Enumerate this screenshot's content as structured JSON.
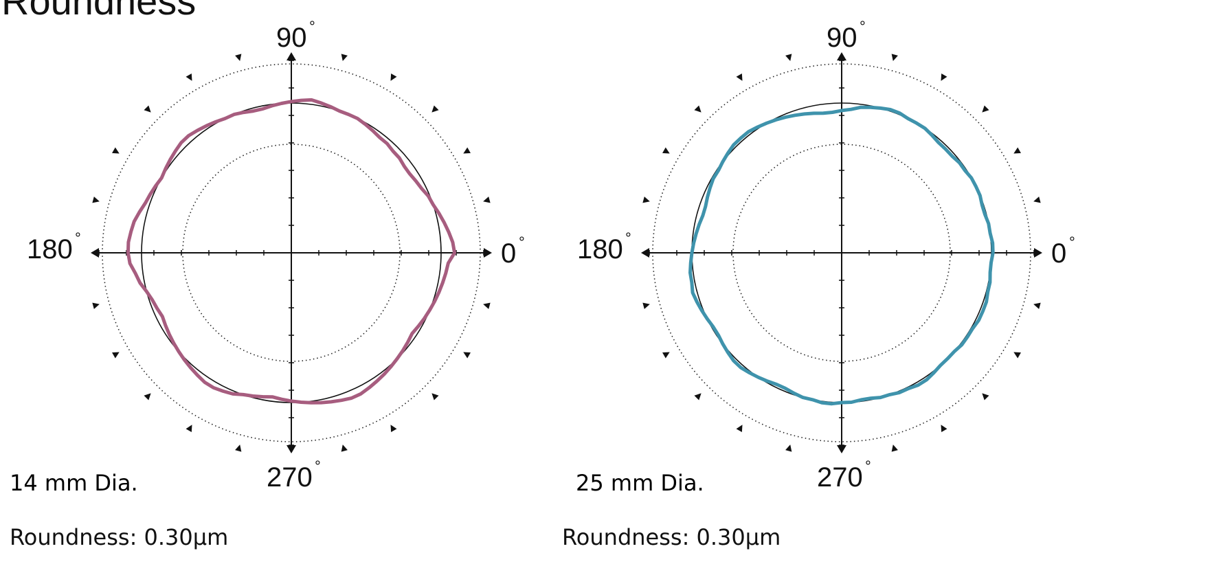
{
  "title": "Roundness",
  "chart_data": [
    {
      "type": "polar-line",
      "angle_labels": [
        "90",
        "180",
        "0",
        "270"
      ],
      "degree_symbol": "°",
      "caption": "14 mm Dia.",
      "roundness_text": "Roundness: 0.30μm",
      "color": "#a75d7f",
      "radial_deviation": [
        1.09,
        1.08,
        1.06,
        1.04,
        1.02,
        1.0,
        0.99,
        0.97,
        0.96,
        0.95,
        0.95,
        0.96,
        0.96,
        0.97,
        0.97,
        0.98,
        0.99,
        1.0,
        1.0,
        1.0,
        1.01,
        1.02,
        1.03,
        1.02,
        1.01,
        1.0,
        0.99,
        0.98,
        0.98,
        0.99,
        1.0,
        1.0,
        1.01,
        1.02,
        1.03,
        1.04,
        1.04,
        1.03,
        1.02,
        1.01,
        1.0,
        1.01,
        1.02,
        1.03,
        1.05,
        1.07,
        1.08,
        1.09,
        1.09,
        1.08,
        1.05,
        1.03,
        1.0,
        0.98,
        0.97,
        0.96,
        0.97,
        0.98,
        0.99,
        1.0,
        1.01,
        1.02,
        1.03,
        1.04,
        1.04,
        1.03,
        1.02,
        1.0,
        0.99,
        0.98,
        0.97,
        0.98,
        0.99,
        1.0,
        1.01,
        1.02,
        1.03,
        1.04,
        1.05,
        1.05,
        1.04,
        1.03,
        1.02,
        1.01,
        1.0,
        0.99,
        0.98,
        0.97,
        0.98,
        0.99,
        1.0,
        1.01,
        1.02,
        1.03,
        1.04,
        1.05
      ]
    },
    {
      "type": "polar-line",
      "angle_labels": [
        "90",
        "180",
        "0",
        "270"
      ],
      "degree_symbol": "°",
      "caption": "25 mm Dia.",
      "roundness_text": "Roundness: 0.30μm",
      "color": "#3f93ac",
      "radial_deviation": [
        1.01,
        1.01,
        1.0,
        1.0,
        0.99,
        0.99,
        1.0,
        1.0,
        1.0,
        0.99,
        0.99,
        0.98,
        0.98,
        0.98,
        0.99,
        1.0,
        1.0,
        1.0,
        1.01,
        1.01,
        1.0,
        0.99,
        0.98,
        0.96,
        0.95,
        0.94,
        0.94,
        0.95,
        0.96,
        0.97,
        0.98,
        0.99,
        1.0,
        1.01,
        1.02,
        1.02,
        1.02,
        1.01,
        1.0,
        0.99,
        0.99,
        0.98,
        0.97,
        0.96,
        0.96,
        0.97,
        0.98,
        0.99,
        1.0,
        1.01,
        1.02,
        1.02,
        1.03,
        1.02,
        1.01,
        1.0,
        0.99,
        0.99,
        1.0,
        1.01,
        1.02,
        1.02,
        1.01,
        1.0,
        0.99,
        0.98,
        0.98,
        0.99,
        1.0,
        1.0,
        1.01,
        1.01,
        1.0,
        1.0,
        0.99,
        0.99,
        1.0,
        1.0,
        1.01,
        1.01,
        1.02,
        1.02,
        1.01,
        1.0,
        1.0,
        1.0,
        1.01,
        1.01,
        1.01,
        1.02,
        1.02,
        1.02,
        1.01,
        1.01,
        1.0,
        1.0
      ]
    }
  ]
}
